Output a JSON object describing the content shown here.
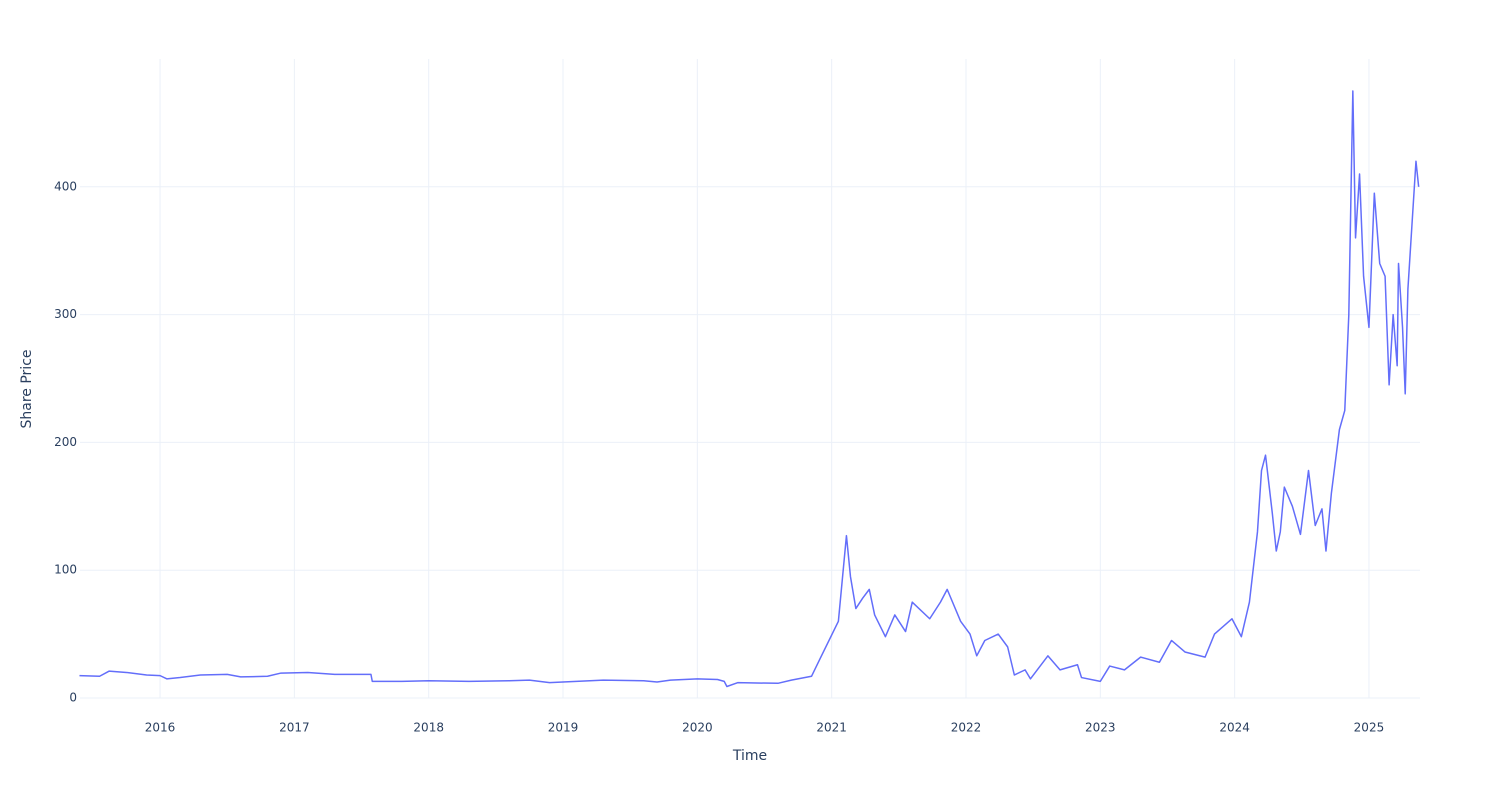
{
  "chart_data": {
    "type": "line",
    "xlabel": "Time",
    "ylabel": "Share Price",
    "color": "#636efa",
    "grid": true,
    "xlim": [
      2015.404,
      2025.38
    ],
    "ylim": [
      0,
      500
    ],
    "xticks": [
      2016,
      2017,
      2018,
      2019,
      2020,
      2021,
      2022,
      2023,
      2024,
      2025
    ],
    "yticks": [
      0,
      100,
      200,
      300,
      400
    ],
    "x": [
      2015.4,
      2015.55,
      2015.62,
      2015.75,
      2015.9,
      2016.0,
      2016.05,
      2016.15,
      2016.3,
      2016.5,
      2016.6,
      2016.8,
      2016.9,
      2017.1,
      2017.3,
      2017.57,
      2017.58,
      2017.8,
      2018.0,
      2018.3,
      2018.6,
      2018.75,
      2018.9,
      2019.0,
      2019.3,
      2019.6,
      2019.7,
      2019.8,
      2020.0,
      2020.15,
      2020.2,
      2020.22,
      2020.3,
      2020.6,
      2020.7,
      2020.85,
      2020.91,
      2021.05,
      2021.11,
      2021.14,
      2021.18,
      2021.23,
      2021.28,
      2021.32,
      2021.4,
      2021.47,
      2021.55,
      2021.6,
      2021.73,
      2021.81,
      2021.86,
      2021.96,
      2022.03,
      2022.08,
      2022.14,
      2022.24,
      2022.31,
      2022.36,
      2022.44,
      2022.48,
      2022.61,
      2022.7,
      2022.83,
      2022.86,
      2023.0,
      2023.07,
      2023.18,
      2023.3,
      2023.44,
      2023.53,
      2023.63,
      2023.78,
      2023.85,
      2023.98,
      2024.05,
      2024.11,
      2024.17,
      2024.2,
      2024.23,
      2024.28,
      2024.31,
      2024.34,
      2024.37,
      2024.43,
      2024.49,
      2024.55,
      2024.6,
      2024.65,
      2024.68,
      2024.72,
      2024.78,
      2024.82,
      2024.85,
      2024.88,
      2024.9,
      2024.93,
      2024.96,
      2025.0,
      2025.04,
      2025.08,
      2025.12,
      2025.15,
      2025.18,
      2025.21,
      2025.22,
      2025.25,
      2025.27,
      2025.29,
      2025.32,
      2025.35,
      2025.37
    ],
    "values": [
      17.5,
      17,
      21,
      20,
      18,
      17.5,
      15,
      16,
      18,
      18.5,
      16.5,
      17,
      19.5,
      20,
      18.5,
      18.5,
      13,
      13,
      13.5,
      13,
      13.5,
      14,
      12,
      12.5,
      14,
      13.5,
      12.5,
      14,
      15,
      14.5,
      13,
      9,
      12,
      11.5,
      14,
      17,
      30,
      60,
      127,
      95,
      70,
      78,
      85,
      65,
      48,
      65,
      52,
      75,
      62,
      75,
      85,
      60,
      50,
      33,
      45,
      50,
      40,
      18,
      22,
      15,
      33,
      22,
      26,
      16,
      13,
      25,
      22,
      32,
      28,
      45,
      36,
      32,
      50,
      62,
      48,
      75,
      130,
      178,
      190,
      145,
      115,
      130,
      165,
      150,
      128,
      178,
      135,
      148,
      115,
      160,
      210,
      225,
      300,
      475,
      360,
      410,
      330,
      290,
      395,
      340,
      330,
      245,
      300,
      260,
      340,
      290,
      238,
      320,
      370,
      420,
      400
    ]
  }
}
